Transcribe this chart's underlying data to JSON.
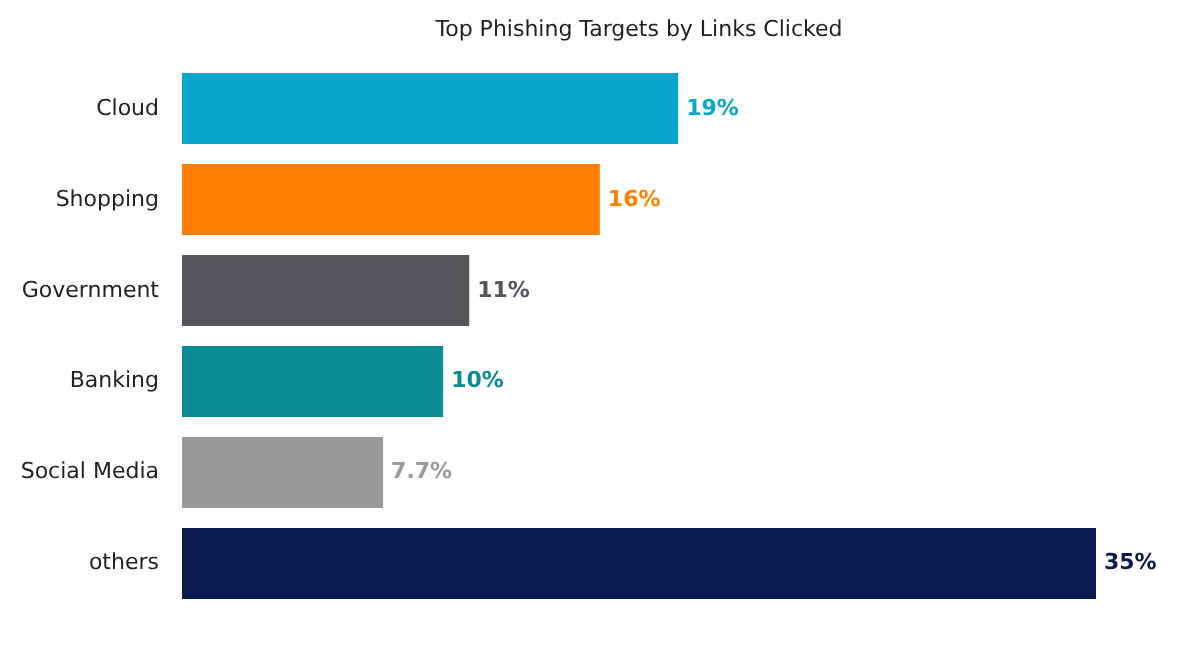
{
  "chart_data": {
    "type": "bar",
    "orientation": "horizontal",
    "title": "Top Phishing Targets by Links Clicked",
    "categories": [
      "Cloud",
      "Shopping",
      "Government",
      "Banking",
      "Social Media",
      "others"
    ],
    "values": [
      19,
      16,
      11,
      10,
      7.7,
      35
    ],
    "colors": [
      "#0aa6cc",
      "#ff8000",
      "#55565b",
      "#0a8a93",
      "#9a9a9c",
      "#0c1a52"
    ],
    "value_labels": [
      "19%",
      "16%",
      "11%",
      "10%",
      "7.7%",
      "35%"
    ]
  }
}
